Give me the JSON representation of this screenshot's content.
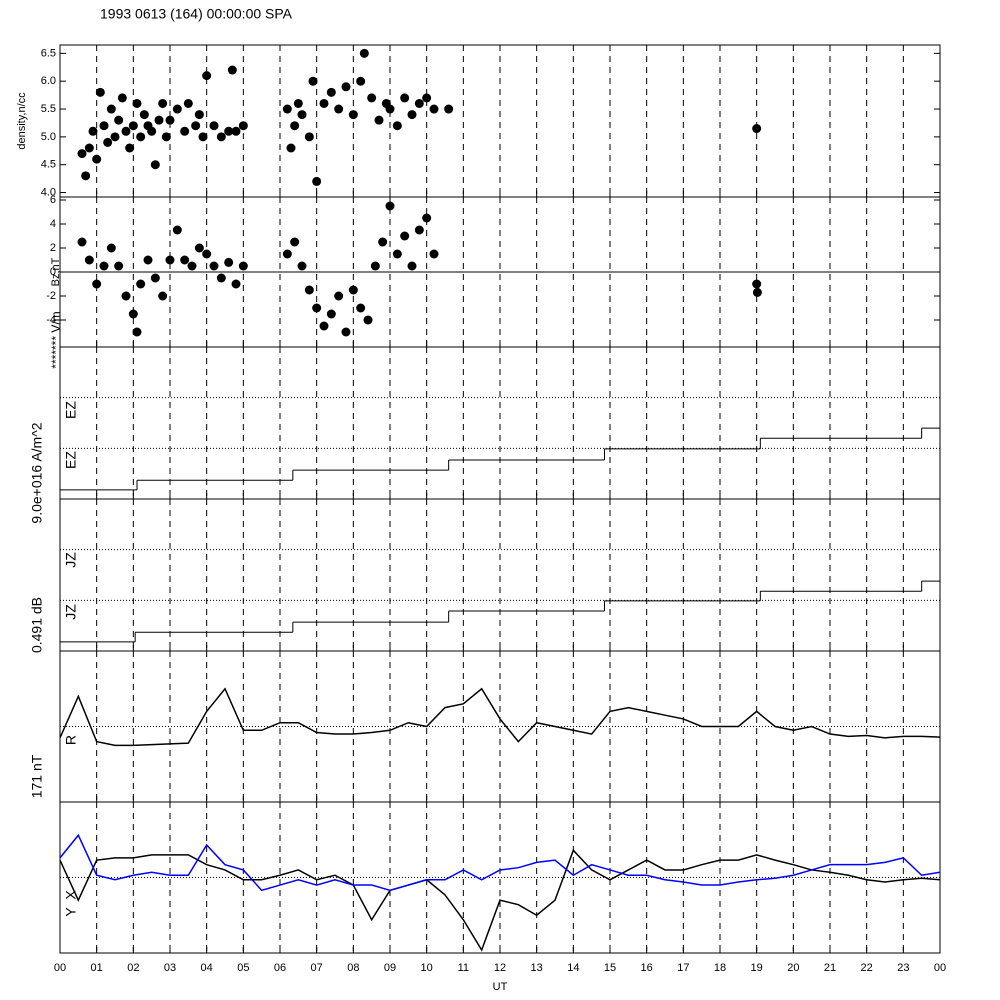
{
  "title": "1993 0613 (164) 00:00:00 SPA",
  "chart_data": [
    {
      "type": "scatter",
      "ylabel": "density,n/cc",
      "color": "#000000",
      "xlim": [
        0,
        24
      ],
      "ylim": [
        3.92,
        6.65
      ],
      "yticks": [
        {
          "value": 4,
          "label": "4.0"
        },
        {
          "value": 4.5,
          "label": "4.5"
        },
        {
          "value": 5,
          "label": "5.0"
        },
        {
          "value": 5.5,
          "label": "5.5"
        },
        {
          "value": 6,
          "label": "6.0"
        },
        {
          "value": 6.5,
          "label": "6.5"
        }
      ],
      "x": [
        0.6,
        0.7,
        0.8,
        0.9,
        1.0,
        1.1,
        1.2,
        1.3,
        1.4,
        1.5,
        1.6,
        1.7,
        1.8,
        1.9,
        2.0,
        2.1,
        2.2,
        2.3,
        2.4,
        2.5,
        2.6,
        2.7,
        2.8,
        2.9,
        3.0,
        3.2,
        3.4,
        3.5,
        3.7,
        3.8,
        3.9,
        4.0,
        4.2,
        4.4,
        4.6,
        4.7,
        4.8,
        5.0,
        6.2,
        6.3,
        6.4,
        6.5,
        6.6,
        6.8,
        6.9,
        7.0,
        7.2,
        7.4,
        7.6,
        7.8,
        8.0,
        8.2,
        8.3,
        8.5,
        8.7,
        8.9,
        9.0,
        9.2,
        9.4,
        9.6,
        9.8,
        10.0,
        10.2,
        10.6,
        19.0
      ],
      "y": [
        4.7,
        4.3,
        4.8,
        5.1,
        4.6,
        5.8,
        5.2,
        4.9,
        5.5,
        5.0,
        5.3,
        5.7,
        5.1,
        4.8,
        5.2,
        5.6,
        5.0,
        5.4,
        5.2,
        5.1,
        4.5,
        5.3,
        5.6,
        5.0,
        5.3,
        5.5,
        5.1,
        5.6,
        5.2,
        5.4,
        5.0,
        6.1,
        5.2,
        5.0,
        5.1,
        6.2,
        5.1,
        5.2,
        5.5,
        4.8,
        5.2,
        5.6,
        5.4,
        5.0,
        6.0,
        4.2,
        5.6,
        5.8,
        5.5,
        5.9,
        5.4,
        6.0,
        6.5,
        5.7,
        5.3,
        5.6,
        5.5,
        5.2,
        5.7,
        5.4,
        5.6,
        5.7,
        5.5,
        5.5,
        5.15
      ]
    },
    {
      "type": "scatter",
      "ylabel": "Bz,nT",
      "annotation": "******* V/m",
      "color": "#000000",
      "xlim": [
        0,
        24
      ],
      "ylim": [
        -6.25,
        6.25
      ],
      "yticks": [
        -4,
        -2,
        0,
        2,
        4,
        6
      ],
      "ref_lines": [
        0
      ],
      "ref_line_style": "solid",
      "x": [
        0.6,
        0.8,
        1.0,
        1.2,
        1.4,
        1.6,
        1.8,
        2.0,
        2.1,
        2.2,
        2.4,
        2.6,
        2.8,
        3.0,
        3.2,
        3.4,
        3.6,
        3.8,
        4.0,
        4.2,
        4.4,
        4.6,
        4.8,
        5.0,
        6.2,
        6.4,
        6.6,
        6.8,
        7.0,
        7.2,
        7.4,
        7.6,
        7.8,
        8.0,
        8.2,
        8.4,
        8.6,
        8.8,
        9.0,
        9.2,
        9.4,
        9.6,
        9.8,
        10.0,
        10.2,
        19.0,
        19.02
      ],
      "y": [
        2.5,
        1.0,
        -1.0,
        0.5,
        2.0,
        0.5,
        -2.0,
        -3.5,
        -5.0,
        -1.0,
        1.0,
        -0.5,
        -2.0,
        1.0,
        3.5,
        1.0,
        0.5,
        2.0,
        1.5,
        0.5,
        -0.5,
        0.8,
        -1.0,
        0.5,
        1.5,
        2.5,
        0.5,
        -1.5,
        -3.0,
        -4.5,
        -3.5,
        -2.0,
        -5.0,
        -1.5,
        -3.0,
        -4.0,
        0.5,
        2.5,
        5.5,
        1.5,
        3.0,
        0.5,
        3.5,
        4.5,
        1.5,
        -1.0,
        -1.7
      ]
    },
    {
      "type": "step",
      "ylabel": "9.0e+016 A/m^2",
      "labels": [
        "EZ",
        "EZ"
      ],
      "color": "#000000",
      "xlim": [
        0,
        24
      ],
      "ylim": [
        0,
        3
      ],
      "ref_lines": [
        1,
        2
      ],
      "ref_line_style": "dotted",
      "x": [
        0,
        2.1,
        6.35,
        10.6,
        14.85,
        19.1,
        23.5
      ],
      "y": [
        0.18,
        0.37,
        0.57,
        0.77,
        0.99,
        1.2,
        1.4
      ]
    },
    {
      "type": "step",
      "ylabel": "0.491 dB",
      "labels": [
        "JZ",
        "JZ"
      ],
      "color": "#000000",
      "xlim": [
        0,
        24
      ],
      "ylim": [
        0,
        3
      ],
      "ref_lines": [
        1,
        2
      ],
      "ref_line_style": "dotted",
      "x": [
        0,
        2.05,
        6.35,
        10.6,
        14.85,
        19.1,
        23.5
      ],
      "y": [
        0.18,
        0.37,
        0.57,
        0.79,
        0.99,
        1.18,
        1.38
      ]
    },
    {
      "type": "line",
      "ylabel": "171 nT",
      "labels": [
        "R"
      ],
      "xlim": [
        0,
        24
      ],
      "ylim": [
        0,
        2
      ],
      "ref_lines": [
        1
      ],
      "ref_line_style": "dotted",
      "x": [
        0,
        0.5,
        1,
        1.5,
        2,
        2.5,
        3,
        3.5,
        4,
        4.5,
        5,
        5.5,
        6,
        6.5,
        7,
        7.5,
        8,
        8.5,
        9,
        9.5,
        10,
        10.5,
        11,
        11.5,
        12,
        12.5,
        13,
        13.5,
        14,
        14.5,
        15,
        15.5,
        16,
        16.5,
        17,
        17.5,
        18,
        18.5,
        19,
        19.5,
        20,
        20.5,
        21,
        21.5,
        22,
        22.5,
        23,
        23.5,
        24
      ],
      "series": [
        {
          "name": "R",
          "color": "#000000",
          "values": [
            0.85,
            1.4,
            0.8,
            0.75,
            0.75,
            0.76,
            0.77,
            0.78,
            1.2,
            1.5,
            0.95,
            0.95,
            1.05,
            1.05,
            0.92,
            0.9,
            0.9,
            0.92,
            0.95,
            1.05,
            1.0,
            1.25,
            1.3,
            1.5,
            1.1,
            0.8,
            1.05,
            1.0,
            0.95,
            0.9,
            1.2,
            1.25,
            1.2,
            1.15,
            1.1,
            1.0,
            1.0,
            1.0,
            1.2,
            1.0,
            0.95,
            1.0,
            0.9,
            0.87,
            0.88,
            0.85,
            0.87,
            0.87,
            0.86
          ]
        }
      ]
    },
    {
      "type": "line",
      "labels": [
        "X",
        "Y"
      ],
      "xlabel": "UT",
      "xlim": [
        0,
        24
      ],
      "ylim": [
        0,
        2
      ],
      "ref_lines": [
        1
      ],
      "ref_line_style": "dotted",
      "x": [
        0,
        0.5,
        1,
        1.5,
        2,
        2.5,
        3,
        3.5,
        4,
        4.5,
        5,
        5.5,
        6,
        6.5,
        7,
        7.5,
        8,
        8.5,
        9,
        9.5,
        10,
        10.5,
        11,
        11.5,
        12,
        12.5,
        13,
        13.5,
        14,
        14.5,
        15,
        15.5,
        16,
        16.5,
        17,
        17.5,
        18,
        18.5,
        19,
        19.5,
        20,
        20.5,
        21,
        21.5,
        22,
        22.5,
        23,
        23.5,
        24
      ],
      "series": [
        {
          "name": "X",
          "color": "#000000",
          "values": [
            1.23,
            0.7,
            1.23,
            1.26,
            1.26,
            1.3,
            1.3,
            1.3,
            1.17,
            1.1,
            0.97,
            0.97,
            1.03,
            1.1,
            0.97,
            1.03,
            0.9,
            0.44,
            0.83,
            0.9,
            0.97,
            0.77,
            0.44,
            0.04,
            0.7,
            0.64,
            0.5,
            0.7,
            1.36,
            1.1,
            0.97,
            1.1,
            1.23,
            1.1,
            1.1,
            1.17,
            1.23,
            1.23,
            1.3,
            1.23,
            1.17,
            1.1,
            1.07,
            1.03,
            0.97,
            0.94,
            0.97,
            0.99,
            0.97
          ]
        },
        {
          "name": "Y",
          "color": "#0000ff",
          "values": [
            1.26,
            1.56,
            1.03,
            0.97,
            1.03,
            1.07,
            1.03,
            1.03,
            1.43,
            1.17,
            1.1,
            0.83,
            0.9,
            0.97,
            0.9,
            0.97,
            0.9,
            0.9,
            0.83,
            0.9,
            0.97,
            0.97,
            1.1,
            0.97,
            1.1,
            1.13,
            1.2,
            1.23,
            1.03,
            1.17,
            1.1,
            1.03,
            1.03,
            0.97,
            0.94,
            0.9,
            0.9,
            0.94,
            0.97,
            0.99,
            1.03,
            1.1,
            1.17,
            1.17,
            1.17,
            1.2,
            1.26,
            1.03,
            1.07
          ]
        }
      ],
      "xticks": [
        {
          "value": 0,
          "label": "00"
        },
        {
          "value": 1,
          "label": "01"
        },
        {
          "value": 2,
          "label": "02"
        },
        {
          "value": 3,
          "label": "03"
        },
        {
          "value": 4,
          "label": "04"
        },
        {
          "value": 5,
          "label": "05"
        },
        {
          "value": 6,
          "label": "06"
        },
        {
          "value": 7,
          "label": "07"
        },
        {
          "value": 8,
          "label": "08"
        },
        {
          "value": 9,
          "label": "09"
        },
        {
          "value": 10,
          "label": "10"
        },
        {
          "value": 11,
          "label": "11"
        },
        {
          "value": 12,
          "label": "12"
        },
        {
          "value": 13,
          "label": "13"
        },
        {
          "value": 14,
          "label": "14"
        },
        {
          "value": 15,
          "label": "15"
        },
        {
          "value": 16,
          "label": "16"
        },
        {
          "value": 17,
          "label": "17"
        },
        {
          "value": 18,
          "label": "18"
        },
        {
          "value": 19,
          "label": "19"
        },
        {
          "value": 20,
          "label": "20"
        },
        {
          "value": 21,
          "label": "21"
        },
        {
          "value": 22,
          "label": "22"
        },
        {
          "value": 23,
          "label": "23"
        },
        {
          "value": 24,
          "label": "00"
        }
      ]
    }
  ]
}
